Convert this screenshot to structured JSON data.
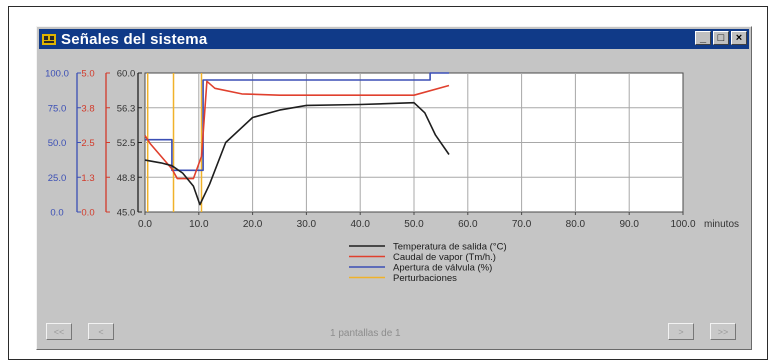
{
  "window": {
    "title": "Señales del sistema",
    "controls": [
      "_",
      "□",
      "×"
    ]
  },
  "chart_data": {
    "type": "line",
    "x_unit": "minutos",
    "xlim": [
      0,
      100
    ],
    "x_ticks": [
      "0.0",
      "10.0",
      "20.0",
      "30.0",
      "40.0",
      "50.0",
      "60.0",
      "70.0",
      "80.0",
      "90.0",
      "100.0"
    ],
    "y_axes": [
      {
        "name": "Apertura de válvula (%)",
        "color": "#3b4fb5",
        "range": [
          0,
          100
        ],
        "ticks": [
          "0.0",
          "25.0",
          "50.0",
          "75.0",
          "100.0"
        ]
      },
      {
        "name": "Caudal de vapor (Tm/h.)",
        "color": "#d23a2a",
        "range": [
          0,
          5
        ],
        "ticks": [
          "0.0",
          "1.3",
          "2.5",
          "3.8",
          "5.0"
        ]
      },
      {
        "name": "Temperatura de salida (°C)",
        "color": "#222222",
        "range": [
          45,
          60
        ],
        "ticks": [
          "45.0",
          "48.8",
          "52.5",
          "56.3",
          "60.0"
        ]
      }
    ],
    "grid": true,
    "legend_position": "bottom",
    "series": [
      {
        "name": "Temperatura de salida (°C)",
        "color": "#1e1e1e",
        "axis": 2,
        "x": [
          0,
          3,
          5,
          7,
          9,
          10.2,
          12,
          15,
          20,
          25,
          30,
          40,
          50,
          52,
          54,
          56.5
        ],
        "y": [
          50.6,
          50.3,
          50.0,
          49.2,
          47.8,
          45.8,
          48.0,
          52.5,
          55.2,
          56.0,
          56.5,
          56.6,
          56.8,
          55.7,
          53.3,
          51.2
        ]
      },
      {
        "name": "Caudal de vapor (Tm/h.)",
        "color": "#e0402e",
        "axis": 1,
        "x": [
          0,
          1,
          5,
          6,
          9,
          10.5,
          11.5,
          13,
          18,
          25,
          30,
          50,
          56.5
        ],
        "y": [
          2.75,
          2.45,
          1.55,
          1.2,
          1.2,
          2.0,
          4.7,
          4.45,
          4.25,
          4.2,
          4.2,
          4.2,
          4.55
        ]
      },
      {
        "name": "Apertura de válvula (%)",
        "color": "#3b4fb5",
        "axis": 0,
        "x": [
          0,
          5,
          5,
          10.8,
          10.8,
          50,
          53,
          53,
          56.5
        ],
        "y": [
          52,
          52,
          30,
          30,
          95,
          95,
          95,
          100,
          100
        ]
      },
      {
        "name": "Perturbaciones",
        "color": "#f0b22a",
        "type": "events",
        "events": [
          0.5,
          5.3,
          10.5
        ]
      }
    ]
  },
  "pagination": {
    "first_label": "<<",
    "prev_label": "<",
    "info": "1 pantallas de 1",
    "next_label": ">",
    "last_label": ">>"
  }
}
